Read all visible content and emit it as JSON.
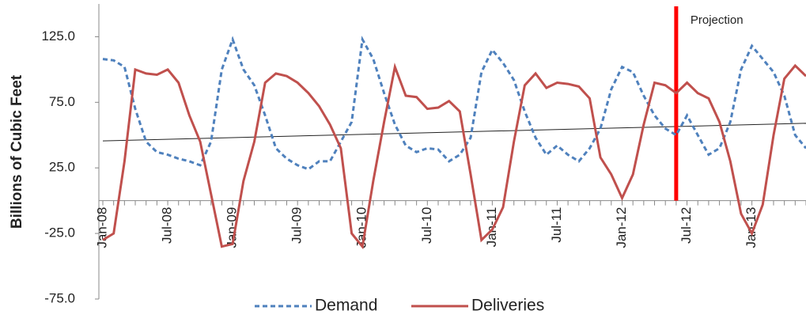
{
  "chart_data": {
    "type": "line",
    "y_label": "Billions of Cubic Feet",
    "categories": [
      "Jan-08",
      null,
      null,
      null,
      null,
      null,
      "Jul-08",
      null,
      null,
      null,
      null,
      null,
      "Jan-09",
      null,
      null,
      null,
      null,
      null,
      "Jul-09",
      null,
      null,
      null,
      null,
      null,
      "Jan-10",
      null,
      null,
      null,
      null,
      null,
      "Jul-10",
      null,
      null,
      null,
      null,
      null,
      "Jan-11",
      null,
      null,
      null,
      null,
      null,
      "Jul-11",
      null,
      null,
      null,
      null,
      null,
      "Jan-12",
      null,
      null,
      null,
      null,
      null,
      "Jul-12",
      null,
      null,
      null,
      null,
      null,
      "Jan-13",
      null,
      null,
      null,
      null,
      null
    ],
    "series": [
      {
        "name": "Demand",
        "color": "#4f81bd",
        "dashed": true,
        "values": [
          108,
          107,
          102,
          70,
          45,
          37,
          35,
          32,
          30,
          27,
          45,
          100,
          123,
          100,
          88,
          65,
          40,
          32,
          27,
          24,
          30,
          30,
          45,
          60,
          123,
          108,
          82,
          58,
          42,
          37,
          40,
          39,
          30,
          35,
          48,
          98,
          115,
          105,
          92,
          68,
          48,
          35,
          42,
          35,
          30,
          40,
          55,
          85,
          102,
          98,
          80,
          65,
          55,
          50,
          65,
          50,
          35,
          40,
          60,
          100,
          118,
          108,
          98,
          80,
          50,
          40
        ]
      },
      {
        "name": "Deliveries",
        "color": "#c0504d",
        "dashed": false,
        "values": [
          -30,
          -25,
          30,
          100,
          97,
          96,
          100,
          90,
          65,
          45,
          5,
          -35,
          -33,
          15,
          45,
          90,
          97,
          95,
          90,
          82,
          72,
          58,
          40,
          -25,
          -35,
          15,
          60,
          102,
          80,
          79,
          70,
          71,
          76,
          68,
          20,
          -30,
          -22,
          -5,
          45,
          88,
          97,
          86,
          90,
          89,
          87,
          78,
          33,
          20,
          2,
          20,
          58,
          90,
          88,
          82,
          90,
          82,
          78,
          60,
          30,
          -10,
          -25,
          -3,
          50,
          93,
          103,
          95
        ]
      }
    ],
    "trendline": {
      "color": "#222222",
      "values": [
        45.6,
        59.0
      ]
    },
    "projection": {
      "text": "Projection",
      "category_index": 53,
      "color": "#ff0000"
    },
    "ylim": [
      -75,
      150
    ],
    "yticks": [
      {
        "value": 125,
        "label": "125.0"
      },
      {
        "value": 75,
        "label": "75.0"
      },
      {
        "value": 25,
        "label": "25.0"
      },
      {
        "value": -25,
        "label": "-25.0"
      },
      {
        "value": -75,
        "label": "-75.0"
      }
    ],
    "legend": "bottom"
  }
}
